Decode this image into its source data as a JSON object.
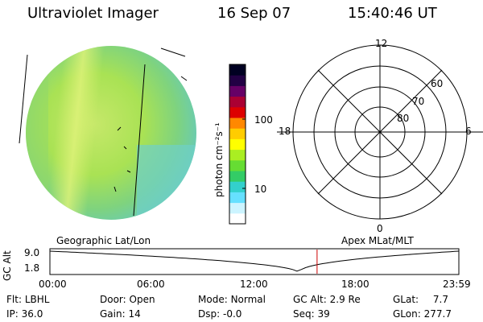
{
  "header": {
    "instrument": "Ultraviolet Imager",
    "date": "16 Sep 07",
    "time": "15:40:46 UT"
  },
  "colorbar": {
    "label": "photon cm⁻²s⁻¹",
    "ticks": [
      {
        "label": "100",
        "value": 100
      },
      {
        "label": "10",
        "value": 10
      }
    ],
    "colors": [
      "#ffffff",
      "#ccf4ff",
      "#66e0ff",
      "#33d0cc",
      "#33cc66",
      "#66dd33",
      "#aaee22",
      "#ffff00",
      "#ffcc00",
      "#ff8800",
      "#dd0000",
      "#aa0033",
      "#660066",
      "#220044",
      "#000022"
    ]
  },
  "polar_plot": {
    "clock_labels": [
      "12",
      "18",
      "6",
      "0"
    ],
    "lat_labels": [
      "60",
      "70",
      "80"
    ]
  },
  "timeline": {
    "left_title": "Geographic Lat/Lon",
    "right_title": "Apex MLat/MLT",
    "ylabel": "GC Alt",
    "y_ticks": [
      "9.0",
      "1.8"
    ],
    "x_ticks": [
      "00:00",
      "06:00",
      "12:00",
      "18:00",
      "23:59"
    ],
    "marker_time": "15:40:46"
  },
  "status": {
    "row1": [
      {
        "key": "Flt:",
        "value": "LBHL"
      },
      {
        "key": "Door:",
        "value": "Open"
      },
      {
        "key": "Mode:",
        "value": "Normal"
      },
      {
        "key": "GC Alt:",
        "value": "2.9 Re"
      },
      {
        "key": "GLat:",
        "value": "7.7"
      }
    ],
    "row2": [
      {
        "key": "IP:",
        "value": "36.0"
      },
      {
        "key": "Gain:",
        "value": "14"
      },
      {
        "key": "Dsp:",
        "value": "-0.0"
      },
      {
        "key": "Seq:",
        "value": "39"
      },
      {
        "key": "GLon:",
        "value": "277.7"
      }
    ]
  }
}
